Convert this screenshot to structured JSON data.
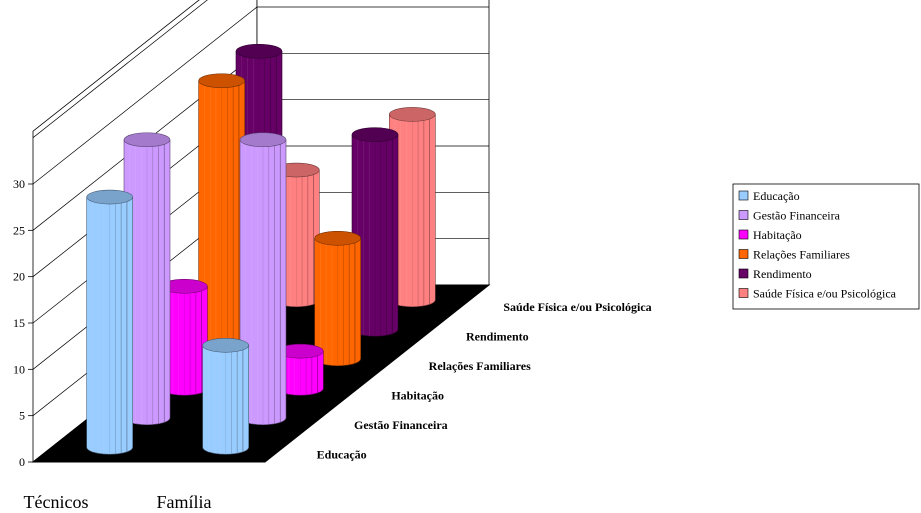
{
  "chart_data": {
    "type": "bar",
    "style": "3d-cylinder",
    "categories": [
      "Técnicos",
      "Família"
    ],
    "series": [
      {
        "name": "Educação",
        "color": "#99ccff",
        "values": [
          27,
          11
        ]
      },
      {
        "name": "Gestão Financeira",
        "color": "#cc99ff",
        "values": [
          30,
          30
        ]
      },
      {
        "name": "Habitação",
        "color": "#ff00ff",
        "values": [
          11,
          4
        ]
      },
      {
        "name": "Relações Familiares",
        "color": "#ff6600",
        "values": [
          30,
          13
        ]
      },
      {
        "name": "Rendimento",
        "color": "#660066",
        "values": [
          30,
          21
        ]
      },
      {
        "name": "Saúde Física e/ou Psicológica",
        "color": "#ff8080",
        "values": [
          14,
          20
        ]
      }
    ],
    "y_ticks": [
      "0",
      "5",
      "10",
      "15",
      "20",
      "25",
      "30"
    ],
    "ylim": [
      0,
      30
    ],
    "grid": true,
    "legend_position": "right"
  }
}
